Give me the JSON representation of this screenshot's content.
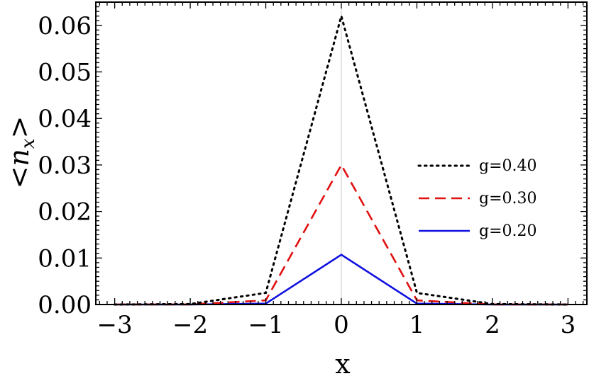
{
  "chart_data": {
    "type": "line",
    "title": "",
    "xlabel": "x",
    "ylabel": "<n_x>",
    "ylabel_parts": {
      "open": "<",
      "symbol": "n",
      "subscript": "x",
      "close": ">"
    },
    "xlim": [
      -3.25,
      3.25
    ],
    "ylim": [
      0,
      0.065
    ],
    "xticks": [
      -3,
      -2,
      -1,
      0,
      1,
      2,
      3
    ],
    "xtick_labels": [
      "−3",
      "−2",
      "−1",
      "0",
      "1",
      "2",
      "3"
    ],
    "yticks": [
      0,
      0.01,
      0.02,
      0.03,
      0.04,
      0.05,
      0.06
    ],
    "ytick_labels": [
      "0.00",
      "0.01",
      "0.02",
      "0.03",
      "0.04",
      "0.05",
      "0.06"
    ],
    "grid": false,
    "vertical_reference_line_at_x": 0,
    "legend_position": "right",
    "series": [
      {
        "name": "g=0.40",
        "color": "#000000",
        "style": "dotted",
        "x": [
          -3,
          -2,
          -1,
          0,
          1,
          2,
          3
        ],
        "y": [
          0.0,
          0.0001,
          0.0025,
          0.062,
          0.0025,
          0.0001,
          0.0
        ]
      },
      {
        "name": "g=0.30",
        "color": "#e01010",
        "style": "dashed",
        "x": [
          -3,
          -2,
          -1,
          0,
          1,
          2,
          3
        ],
        "y": [
          0.0,
          2e-05,
          0.0009,
          0.03,
          0.0009,
          2e-05,
          0.0
        ]
      },
      {
        "name": "g=0.20",
        "color": "#1010e0",
        "style": "solid",
        "x": [
          -3,
          -2,
          -1,
          0,
          1,
          2,
          3
        ],
        "y": [
          0.0,
          0.0,
          0.0002,
          0.0107,
          0.0002,
          0.0,
          0.0
        ]
      }
    ]
  }
}
